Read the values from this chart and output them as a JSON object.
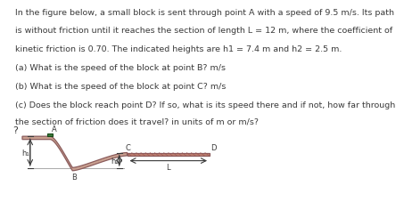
{
  "line1": "In the figure below, a small block is sent through point A with a speed of 9.5 m/s. Its path",
  "line2": "is without friction until it reaches the section of length L = 12 m, where the coefficient of",
  "line3": "kinetic friction is 0.70. The indicated heights are h1 = 7.4 m and h2 = 2.5 m.",
  "qa1": "(a) What is the speed of the block at point B? m/s",
  "qa2": "(b) What is the speed of the block at point C? m/s",
  "qa3a": "(c) Does the block reach point D? If so, what is its speed there and if not, how far through",
  "qa3b": "the section of friction does it travel? in units of m or m/s?",
  "qmark": "?",
  "track_color": "#c9a090",
  "track_edge_color": "#8b5c5c",
  "block_color": "#3a7a3a",
  "block_edge_color": "#1a4a1a",
  "friction_fill": "#c08070",
  "text_color": "#3a3a3a",
  "bg_color": "#ffffff",
  "font_size_body": 6.8,
  "font_size_label": 6.0,
  "font_size_qmark": 8.0
}
